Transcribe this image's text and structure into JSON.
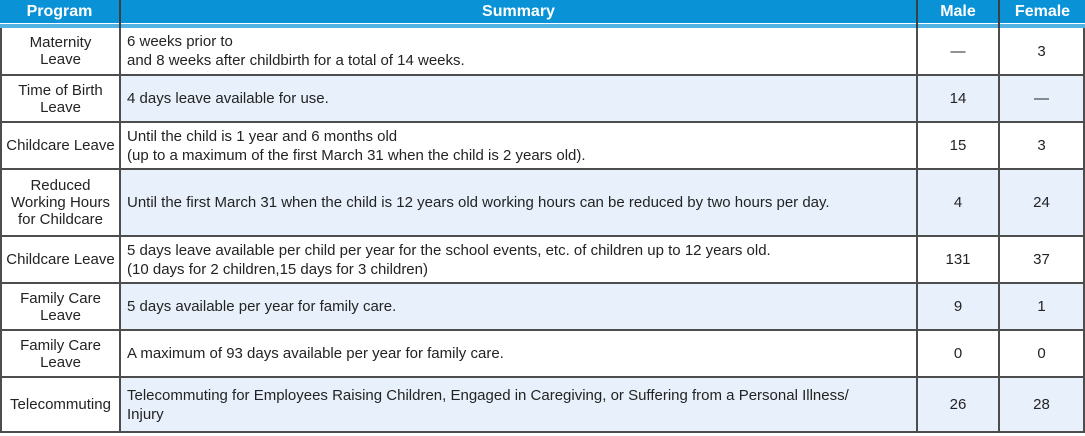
{
  "colors": {
    "header_bg": "#0992d6",
    "header_underline": "#54b2e2",
    "header_text": "#ffffff",
    "row_bg": "#ffffff",
    "row_alt_bg": "#e8f1fb",
    "border": "#4d4d4d",
    "body_text": "#232323"
  },
  "chart_data": {
    "type": "table",
    "columns": [
      "Program",
      "Summary",
      "Male",
      "Female"
    ],
    "rows": [
      {
        "program": "Maternity Leave",
        "program_lines": [
          "Maternity",
          "Leave"
        ],
        "summary_lines": [
          "6 weeks prior to",
          "and 8 weeks after childbirth for a total of 14 weeks."
        ],
        "male": "—",
        "female": "3"
      },
      {
        "program": "Time of Birth Leave",
        "program_lines": [
          "Time of Birth",
          "Leave"
        ],
        "summary_lines": [
          "4 days leave available for use."
        ],
        "male": "14",
        "female": "—"
      },
      {
        "program": "Childcare Leave",
        "program_lines": [
          "Childcare Leave"
        ],
        "summary_lines": [
          "Until the child is 1 year and 6 months old",
          "(up to a maximum of the first March 31 when the child is 2 years old)."
        ],
        "male": "15",
        "female": "3"
      },
      {
        "program": "Reduced Working Hours for Childcare",
        "program_lines": [
          "Reduced",
          "Working Hours",
          "for Childcare"
        ],
        "summary_lines": [
          "Until the first March 31 when the child is 12 years old working hours can be reduced by two hours per day."
        ],
        "male": "4",
        "female": "24"
      },
      {
        "program": "Childcare Leave",
        "program_lines": [
          "Childcare Leave"
        ],
        "summary_lines": [
          "5 days leave available per child per year for the school events, etc. of children up to 12 years old.",
          "(10 days for 2 children,15 days for 3 children)"
        ],
        "male": "131",
        "female": "37"
      },
      {
        "program": "Family Care Leave",
        "program_lines": [
          "Family Care",
          "Leave"
        ],
        "summary_lines": [
          "5 days available per year for family care."
        ],
        "male": "9",
        "female": "1"
      },
      {
        "program": "Family Care Leave",
        "program_lines": [
          "Family Care",
          "Leave"
        ],
        "summary_lines": [
          "A maximum of 93 days available per year for family care."
        ],
        "male": "0",
        "female": "0"
      },
      {
        "program": "Telecommuting",
        "program_lines": [
          "Telecommuting"
        ],
        "summary_lines": [
          "Telecommuting for Employees Raising Children, Engaged in Caregiving, or Suffering from a Personal Illness/",
          "Injury"
        ],
        "male": "26",
        "female": "28"
      }
    ]
  }
}
